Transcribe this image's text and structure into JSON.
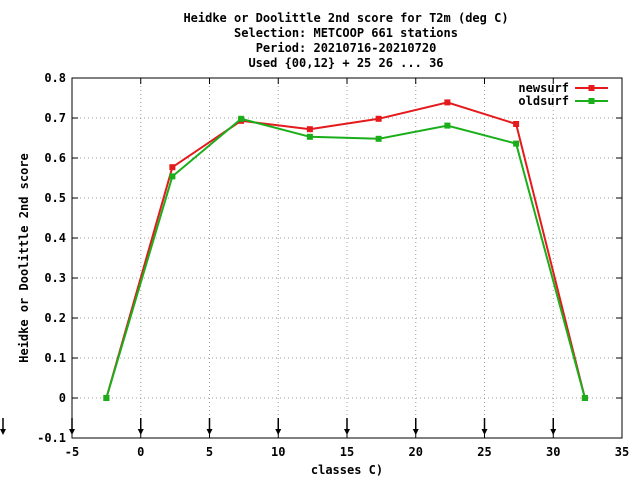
{
  "chart_data": {
    "type": "line",
    "title_lines": [
      "Heidke or Doolittle 2nd score  for T2m (deg C)",
      "Selection: METCOOP    661 stations",
      "Period: 20210716-20210720",
      "Used {00,12} + 25 26 ... 36"
    ],
    "xlabel": "classes C)",
    "ylabel": "Heidke or Doolittle 2nd score",
    "xlim": [
      -5,
      35
    ],
    "ylim": [
      -0.1,
      0.8
    ],
    "xticks": [
      "-5",
      "0",
      "5",
      "10",
      "15",
      "20",
      "25",
      "30",
      "35"
    ],
    "yticks": [
      "-0.1",
      "0",
      "0.1",
      "0.2",
      "0.3",
      "0.4",
      "0.5",
      "0.6",
      "0.7",
      "0.8"
    ],
    "grid": true,
    "legend_position": "top-right",
    "series": [
      {
        "name": "newsurf",
        "color": "#e41a1c",
        "x": [
          -2.5,
          2.3,
          7.3,
          12.3,
          17.3,
          22.3,
          27.3,
          32.3
        ],
        "y": [
          0.0,
          0.577,
          0.693,
          0.672,
          0.698,
          0.739,
          0.685,
          0.0
        ]
      },
      {
        "name": "oldsurf",
        "color": "#1aae1a",
        "x": [
          -2.5,
          2.3,
          7.3,
          12.3,
          17.3,
          22.3,
          27.3,
          32.3
        ],
        "y": [
          0.0,
          0.554,
          0.698,
          0.653,
          0.648,
          0.681,
          0.636,
          0.0
        ]
      }
    ],
    "arrow_markers_x": [
      -5,
      0,
      5,
      10,
      15,
      20,
      25,
      30
    ]
  }
}
